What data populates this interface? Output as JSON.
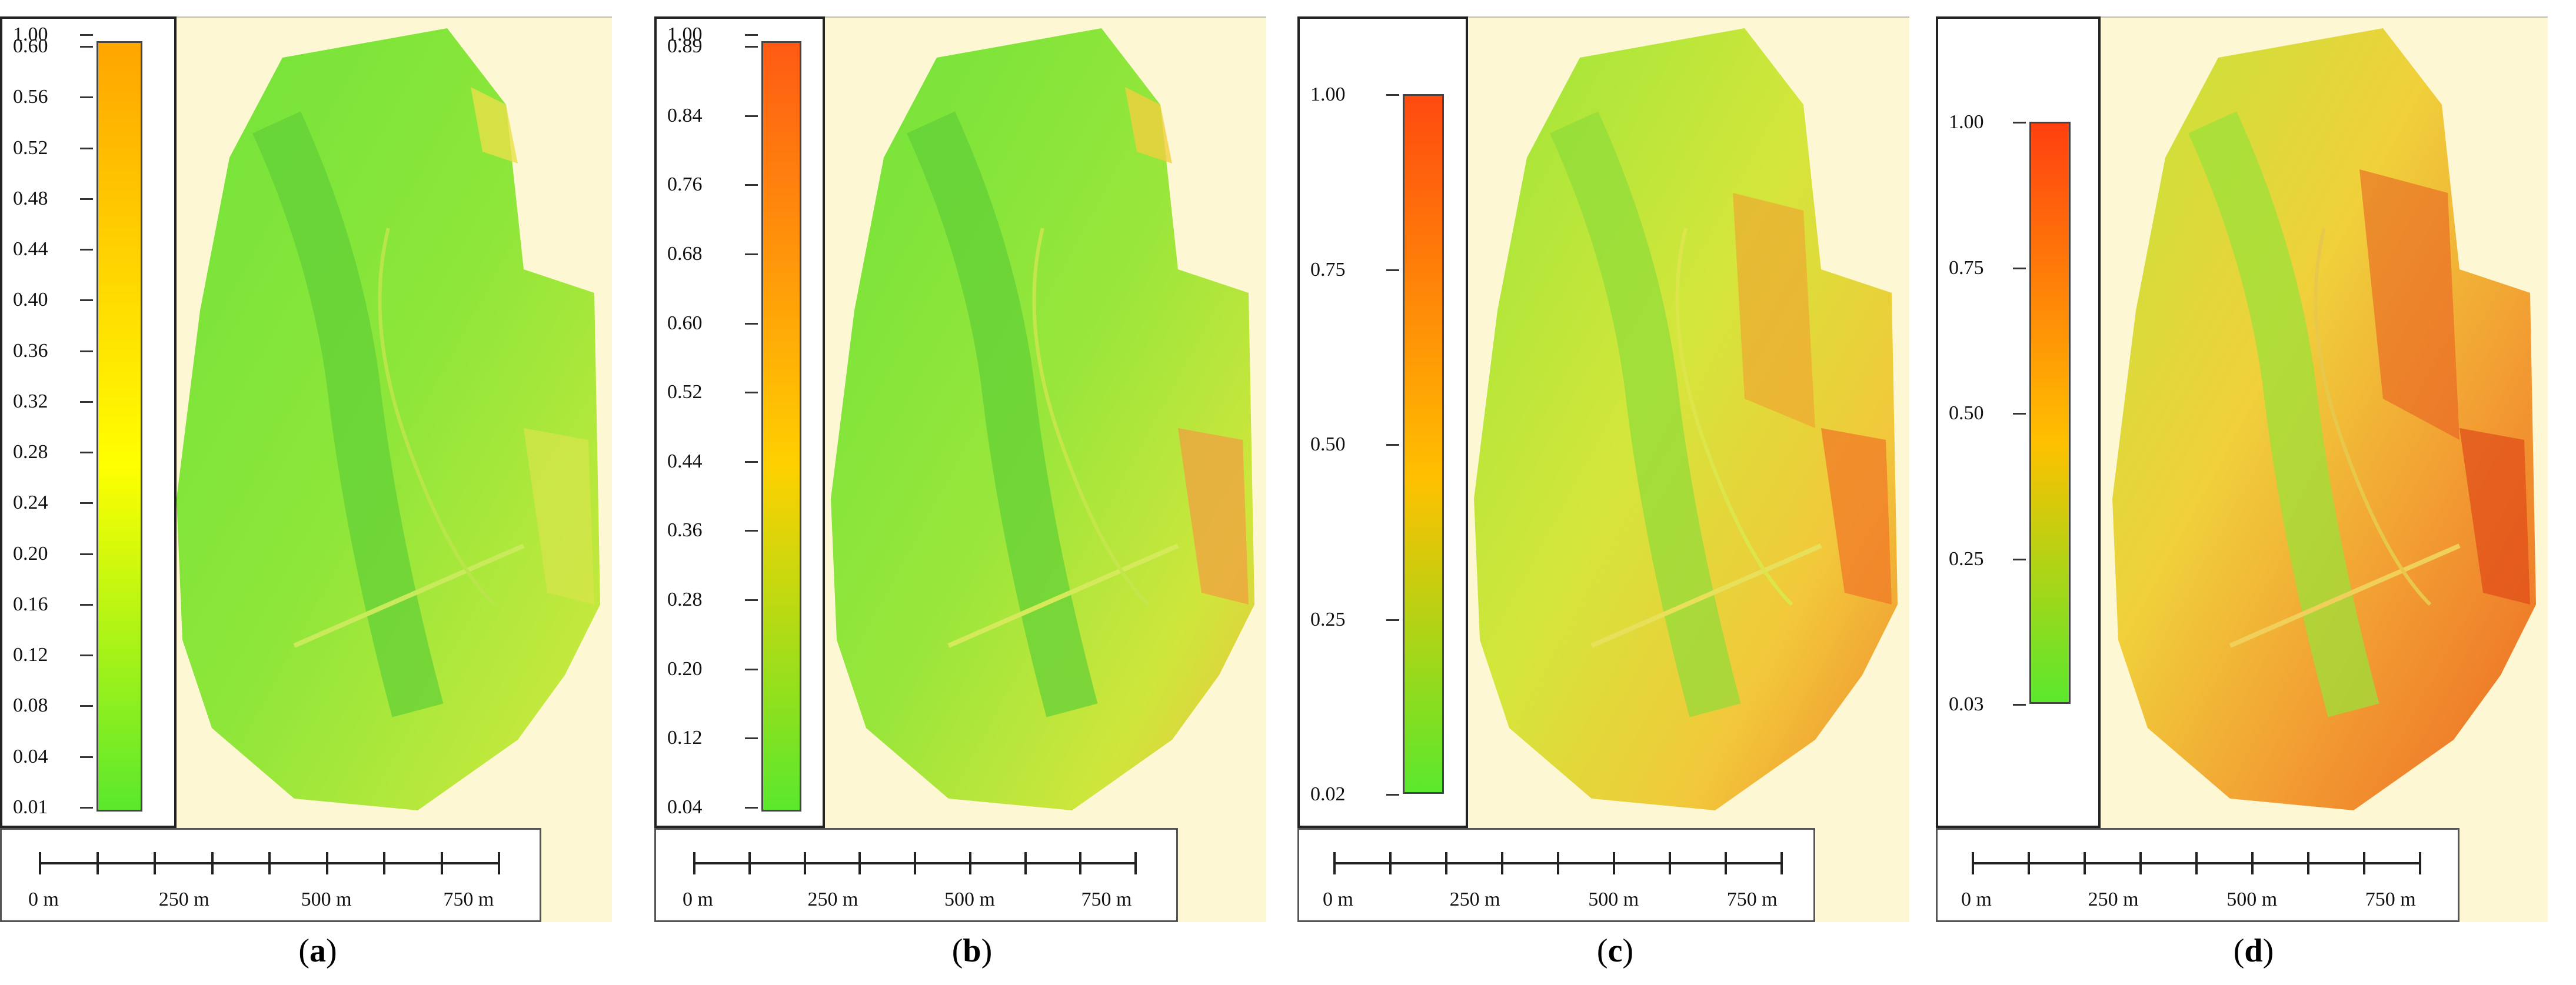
{
  "panels": [
    {
      "id": "a",
      "caption_open": "(",
      "caption_letter": "a",
      "caption_close": ")",
      "legend_ticks": [
        "1.00",
        "0.60",
        "0.56",
        "0.52",
        "0.48",
        "0.44",
        "0.40",
        "0.36",
        "0.32",
        "0.28",
        "0.24",
        "0.20",
        "0.16",
        "0.12",
        "0.08",
        "0.04",
        "0.01"
      ],
      "colors": {
        "top": "#ffa500",
        "mid": "#ffff00",
        "bottom": "#5be82d"
      },
      "scale_labels": [
        "0 m",
        "250 m",
        "500 m",
        "750 m"
      ]
    },
    {
      "id": "b",
      "caption_open": "(",
      "caption_letter": "b",
      "caption_close": ")",
      "legend_ticks": [
        "1.00",
        "0.89",
        "0.84",
        "0.76",
        "0.68",
        "0.60",
        "0.52",
        "0.44",
        "0.36",
        "0.28",
        "0.20",
        "0.12",
        "0.04"
      ],
      "colors": {
        "top": "#ff5a14",
        "mid": "#ffd000",
        "bottom": "#5be82d"
      },
      "scale_labels": [
        "0 m",
        "250 m",
        "500 m",
        "750 m"
      ]
    },
    {
      "id": "c",
      "caption_open": "(",
      "caption_letter": "c",
      "caption_close": ")",
      "legend_ticks": [
        "1.00",
        "0.75",
        "0.50",
        "0.25",
        "0.02"
      ],
      "colors": {
        "top": "#ff4a10",
        "mid": "#ffc000",
        "bottom": "#5be82d"
      },
      "scale_labels": [
        "0 m",
        "250 m",
        "500 m",
        "750 m"
      ]
    },
    {
      "id": "d",
      "caption_open": "(",
      "caption_letter": "d",
      "caption_close": ")",
      "legend_ticks": [
        "1.00",
        "0.75",
        "0.50",
        "0.25",
        "0.03"
      ],
      "colors": {
        "top": "#ff4010",
        "mid": "#ffc000",
        "bottom": "#5be82d"
      },
      "scale_labels": [
        "0 m",
        "250 m",
        "500 m",
        "750 m"
      ]
    }
  ]
}
